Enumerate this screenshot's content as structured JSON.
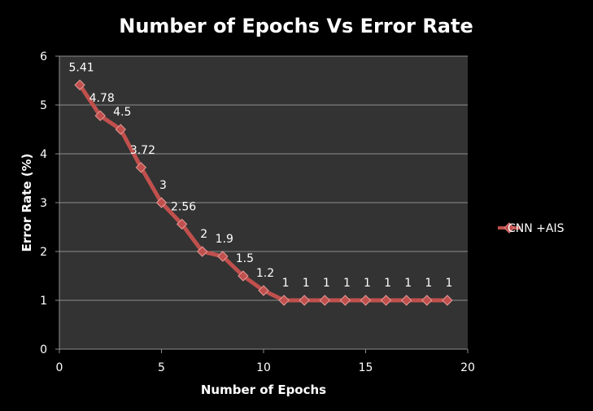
{
  "chart_data": {
    "type": "line",
    "title": "Number of Epochs Vs Error Rate",
    "xlabel": "Number of Epochs",
    "ylabel": "Error Rate (%)",
    "xlim": [
      0,
      20
    ],
    "ylim": [
      0,
      6
    ],
    "x_ticks": [
      "0",
      "5",
      "10",
      "15",
      "20"
    ],
    "y_ticks": [
      "0",
      "1",
      "2",
      "3",
      "4",
      "5",
      "6"
    ],
    "grid": "horizontal",
    "legend_position": "right",
    "plot_background": "#333333",
    "series": [
      {
        "name": "CNN +AIS",
        "color": "#c0504d",
        "marker": "diamond",
        "x": [
          1,
          2,
          3,
          4,
          5,
          6,
          7,
          8,
          9,
          10,
          11,
          12,
          13,
          14,
          15,
          16,
          17,
          18,
          19
        ],
        "values": [
          5.41,
          4.78,
          4.5,
          3.72,
          3,
          2.56,
          2,
          1.9,
          1.5,
          1.2,
          1,
          1,
          1,
          1,
          1,
          1,
          1,
          1,
          1
        ],
        "labels": [
          "5.41",
          "4.78",
          "4.5",
          "3.72",
          "3",
          "2.56",
          "2",
          "1.9",
          "1.5",
          "1.2",
          "1",
          "1",
          "1",
          "1",
          "1",
          "1",
          "1",
          "1",
          "1"
        ]
      }
    ]
  }
}
